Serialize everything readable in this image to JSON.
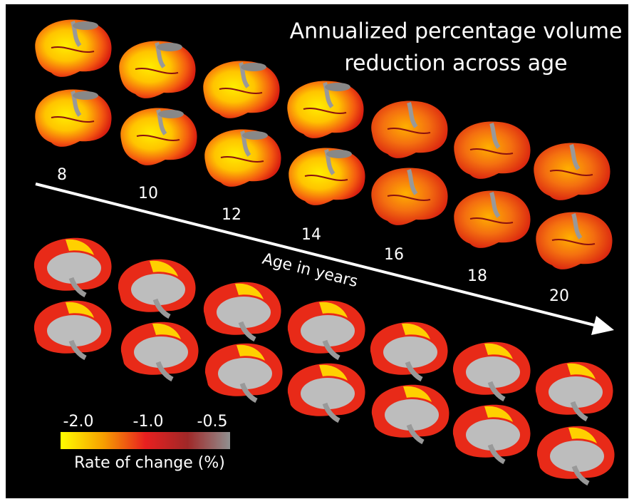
{
  "title": {
    "lines": [
      "Annualized percentage volume",
      "reduction across age"
    ]
  },
  "age_axis": {
    "label": "Age in years",
    "ages": [
      8,
      10,
      12,
      14,
      16,
      18,
      20
    ]
  },
  "colorbar": {
    "ticks": [
      "-2.0",
      "-1.0",
      "-0.5"
    ],
    "label": "Rate of change (%)"
  }
}
